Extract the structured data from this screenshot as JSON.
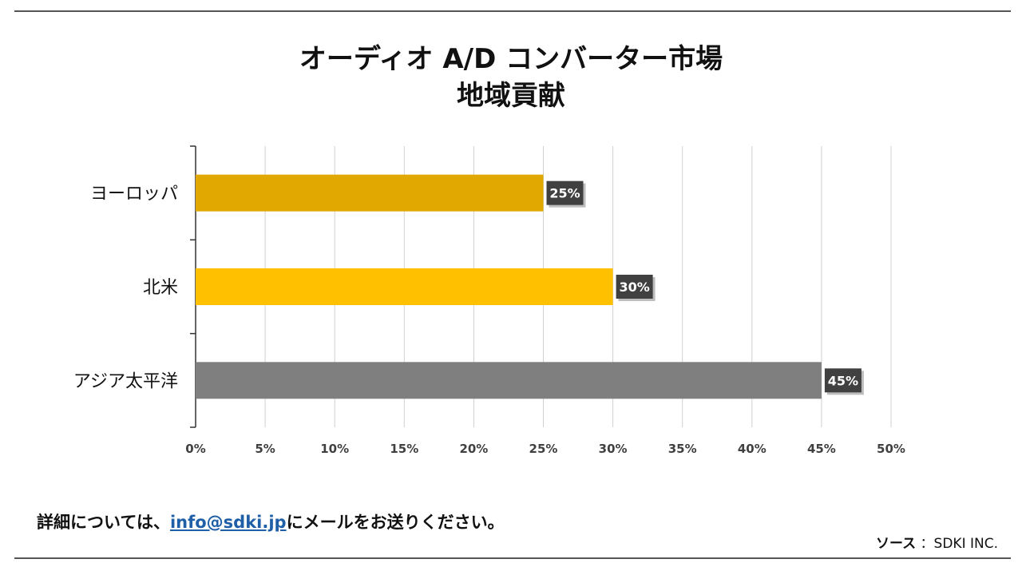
{
  "title": {
    "line1": "オーディオ A/D コンバーター市場",
    "line2": "地域貢献"
  },
  "chart_data": {
    "type": "bar",
    "orientation": "horizontal",
    "categories": [
      "ヨーロッパ",
      "北米",
      "アジア太平洋"
    ],
    "values": [
      25,
      30,
      45
    ],
    "data_labels": [
      "25%",
      "30%",
      "45%"
    ],
    "bar_colors": [
      "#E0A800",
      "#FFC000",
      "#7F7F7F"
    ],
    "xlim": [
      0,
      50
    ],
    "xticks": [
      0,
      5,
      10,
      15,
      20,
      25,
      30,
      35,
      40,
      45,
      50
    ],
    "xtick_labels": [
      "0%",
      "5%",
      "10%",
      "15%",
      "20%",
      "25%",
      "30%",
      "35%",
      "40%",
      "45%",
      "50%"
    ],
    "grid": true,
    "xlabel": "",
    "ylabel": ""
  },
  "colors": {
    "label_box": "#404040",
    "grid": "#d0d0d0",
    "axis": "#333333"
  },
  "footer": {
    "prefix": "詳細については、",
    "email": "info@sdki.jp",
    "suffix": "にメールをお送りください。",
    "source_label": "ソース",
    "source_value": "：SDKI INC."
  }
}
